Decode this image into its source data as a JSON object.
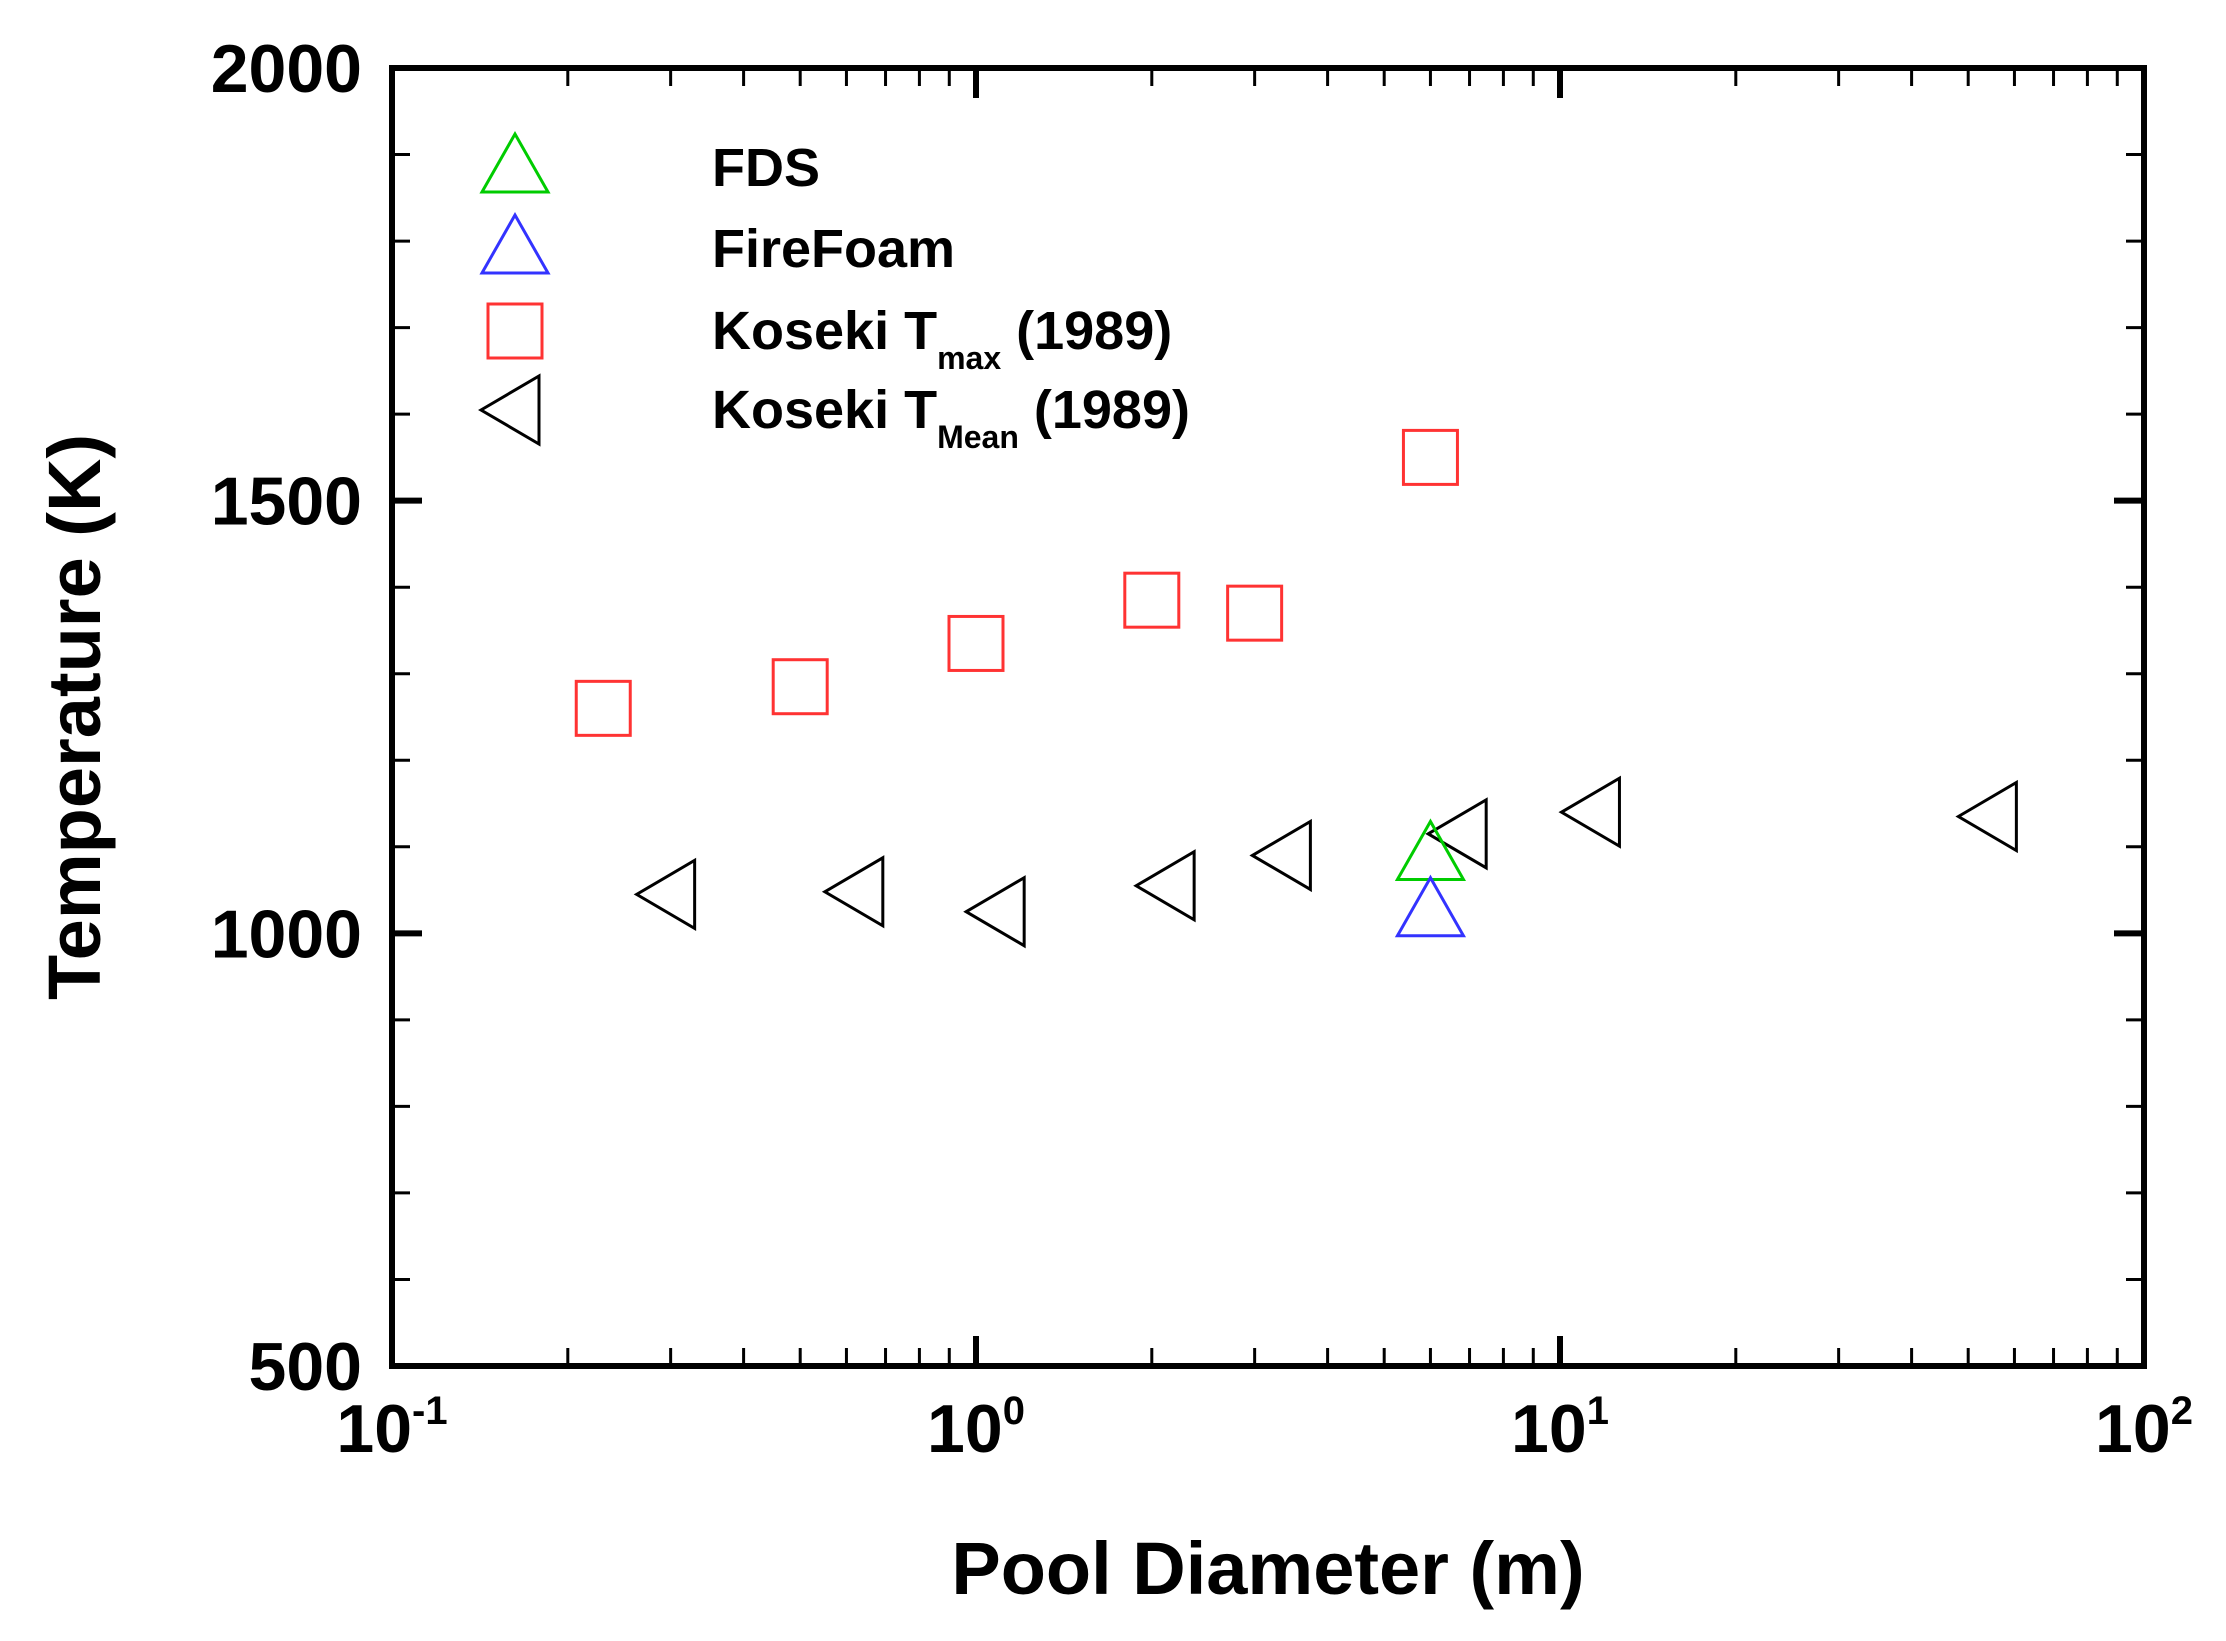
{
  "chart_data": {
    "type": "scatter",
    "xlabel": "Pool Diameter (m)",
    "ylabel": "Temperature (K)",
    "x_scale": "log",
    "xlim": [
      0.1,
      100
    ],
    "ylim": [
      500,
      2000
    ],
    "x_major_ticks": [
      {
        "value": 0.1,
        "base": "10",
        "exp": "-1"
      },
      {
        "value": 1,
        "base": "10",
        "exp": "0"
      },
      {
        "value": 10,
        "base": "10",
        "exp": "1"
      },
      {
        "value": 100,
        "base": "10",
        "exp": "2"
      }
    ],
    "y_major_ticks": [
      {
        "value": 500,
        "label": "500"
      },
      {
        "value": 1000,
        "label": "1000"
      },
      {
        "value": 1500,
        "label": "1500"
      },
      {
        "value": 2000,
        "label": "2000"
      }
    ],
    "y_minor_step": 100,
    "grid": false,
    "legend_position": "top-left",
    "series": [
      {
        "id": "fds",
        "name": "FDS",
        "legend_main": "FDS",
        "legend_sub": "",
        "legend_tail": "",
        "marker": "triangle-up",
        "color": "#00cc00",
        "points": [
          {
            "x": 6.0,
            "y": 1090
          }
        ]
      },
      {
        "id": "firefoam",
        "name": "FireFoam",
        "legend_main": "FireFoam",
        "legend_sub": "",
        "legend_tail": "",
        "marker": "triangle-up",
        "color": "#3333ff",
        "points": [
          {
            "x": 6.0,
            "y": 1025
          }
        ]
      },
      {
        "id": "koseki-tmax",
        "name": "Koseki Tmax (1989)",
        "legend_main": "Koseki T",
        "legend_sub": "max",
        "legend_tail": " (1989)",
        "marker": "square",
        "color": "#ff3333",
        "points": [
          {
            "x": 0.23,
            "y": 1260
          },
          {
            "x": 0.5,
            "y": 1285
          },
          {
            "x": 1.0,
            "y": 1335
          },
          {
            "x": 2.0,
            "y": 1385
          },
          {
            "x": 3.0,
            "y": 1370
          },
          {
            "x": 6.0,
            "y": 1550
          }
        ]
      },
      {
        "id": "koseki-tmean",
        "name": "Koseki TMean (1989)",
        "legend_main": "Koseki T",
        "legend_sub": "Mean",
        "legend_tail": " (1989)",
        "marker": "triangle-left",
        "color": "#000000",
        "points": [
          {
            "x": 0.3,
            "y": 1045
          },
          {
            "x": 0.63,
            "y": 1048
          },
          {
            "x": 1.1,
            "y": 1025
          },
          {
            "x": 2.15,
            "y": 1055
          },
          {
            "x": 3.4,
            "y": 1090
          },
          {
            "x": 6.8,
            "y": 1115
          },
          {
            "x": 11.5,
            "y": 1140
          },
          {
            "x": 55,
            "y": 1135
          }
        ]
      }
    ]
  }
}
